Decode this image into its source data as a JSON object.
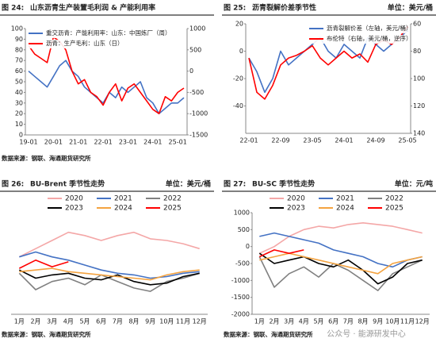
{
  "chart_data": [
    {
      "type": "line",
      "figure_label": "图 24:",
      "title": "山东沥青生产装置毛利润 & 产能利用率",
      "source": "数据来源：钢联、海通期货研究所",
      "legend": "upper left",
      "categories": [
        "19-01",
        null,
        null,
        null,
        "20-01",
        null,
        null,
        null,
        "21-01",
        null,
        null,
        null,
        "22-01",
        null,
        null,
        null,
        "23-01",
        null,
        null,
        null,
        "24-01",
        null,
        null,
        null,
        "25-01",
        null
      ],
      "ylim": [
        0,
        100
      ],
      "yticks": [
        0,
        10,
        20,
        30,
        40,
        50,
        60,
        70,
        80,
        90,
        100
      ],
      "y2lim": [
        -1500,
        1000
      ],
      "y2ticks": [
        -1500,
        -1000,
        -500,
        0,
        500,
        1000
      ],
      "series": [
        {
          "name": "重交沥青：产能利用率：山东：中国炼厂（周）",
          "color": "#4472c4",
          "values": [
            60,
            55,
            50,
            45,
            55,
            65,
            70,
            60,
            55,
            45,
            40,
            35,
            30,
            40,
            35,
            45,
            40,
            45,
            50,
            35,
            30,
            20,
            25,
            30,
            30,
            35
          ]
        },
        {
          "name": "沥青：生产毛利：山东（日）",
          "color": "#ff0000",
          "axis": "y2",
          "values": [
            600,
            400,
            300,
            200,
            800,
            700,
            500,
            0,
            -300,
            -200,
            -500,
            -600,
            -800,
            -500,
            -300,
            -700,
            -400,
            -300,
            -500,
            -700,
            -900,
            -1000,
            -600,
            -700,
            -500,
            -400
          ]
        }
      ]
    },
    {
      "type": "line",
      "figure_label": "图 25:",
      "title": "沥青裂解价差季节性",
      "unit": "单位：美元/桶",
      "legend": "upper right",
      "categories": [
        "22-01",
        null,
        null,
        null,
        "22-09",
        null,
        null,
        null,
        "23-05",
        null,
        null,
        null,
        "24-01",
        null,
        null,
        null,
        "24-09",
        null,
        null,
        null,
        "25-05"
      ],
      "ylim": [
        -60,
        20
      ],
      "yticks": [
        -40,
        -20,
        0,
        20
      ],
      "y2lim": [
        140,
        60
      ],
      "y2ticks": [
        60,
        80,
        100,
        120,
        140
      ],
      "series": [
        {
          "name": "沥青裂解价差（左轴，美元/桶）",
          "color": "#4472c4",
          "values": [
            -5,
            -15,
            -30,
            -20,
            0,
            -10,
            -5,
            0,
            5,
            10,
            0,
            -5,
            5,
            0,
            -5,
            10,
            5,
            0,
            5,
            10,
            15
          ]
        },
        {
          "name": "布伦特（右轴，美元/桶，逆序）",
          "color": "#ff0000",
          "axis": "y2",
          "values": [
            85,
            110,
            115,
            105,
            90,
            85,
            83,
            80,
            76,
            85,
            90,
            85,
            80,
            85,
            82,
            88,
            75,
            72,
            75,
            70,
            62
          ]
        }
      ]
    },
    {
      "type": "season",
      "figure_label": "图 26:",
      "title": "BU-Brent 季节性走势",
      "unit": "单位：美元/桶",
      "source": "数据来源：钢联、海通期货研究所",
      "legend": "top",
      "categories": [
        "1月",
        "2月",
        "3月",
        "4月",
        "5月",
        "6月",
        "7月",
        "8月",
        "9月",
        "10月",
        "11月",
        "12月"
      ],
      "ylim": [
        -30,
        30
      ],
      "series": [
        {
          "name": "2020",
          "color": "#f4a7a7",
          "values": [
            5,
            10,
            15,
            20,
            18,
            15,
            18,
            20,
            16,
            15,
            13,
            10
          ]
        },
        {
          "name": "2021",
          "color": "#4472c4",
          "values": [
            5,
            8,
            5,
            3,
            0,
            -3,
            -5,
            -6,
            -8,
            -7,
            -5,
            -4
          ]
        },
        {
          "name": "2022",
          "color": "#808080",
          "values": [
            -5,
            -15,
            -10,
            -8,
            -12,
            -6,
            -10,
            -14,
            -16,
            -10,
            -8,
            -5
          ]
        },
        {
          "name": "2023",
          "color": "#000000",
          "values": [
            -3,
            -8,
            -6,
            -5,
            -8,
            -9,
            -6,
            -10,
            -12,
            -11,
            -7,
            -5
          ]
        },
        {
          "name": "2024",
          "color": "#f4a340",
          "values": [
            -4,
            -3,
            -2,
            -4,
            -5,
            -6,
            -7,
            -8,
            -9,
            -6,
            -4,
            -3
          ]
        },
        {
          "name": "2025",
          "color": "#ff0000",
          "values": [
            -2,
            3,
            -1,
            2,
            null,
            null,
            null,
            null,
            null,
            null,
            null,
            null
          ]
        }
      ]
    },
    {
      "type": "season",
      "figure_label": "图 27:",
      "title": "BU-SC 季节性走势",
      "unit": "单位：元/吨",
      "source": "数据来源：钢联、海通期货研究所",
      "legend": "top",
      "categories": [
        "1月",
        "2月",
        "3月",
        "4月",
        "5月",
        "6月",
        "7月",
        "8月",
        "9月",
        "10月",
        "11月",
        "12月"
      ],
      "ylim": [
        -2000,
        1000
      ],
      "yticks": [
        -2000,
        -1500,
        -1000,
        -500,
        0,
        500,
        1000
      ],
      "series": [
        {
          "name": "2020",
          "color": "#f4a7a7",
          "values": [
            -200,
            0,
            300,
            500,
            600,
            550,
            650,
            700,
            650,
            600,
            500,
            400
          ]
        },
        {
          "name": "2021",
          "color": "#4472c4",
          "values": [
            300,
            400,
            300,
            200,
            100,
            -100,
            -200,
            -300,
            -500,
            -600,
            -400,
            -300
          ]
        },
        {
          "name": "2022",
          "color": "#808080",
          "values": [
            -300,
            -1200,
            -800,
            -600,
            -900,
            -500,
            -700,
            -1000,
            -1300,
            -800,
            -600,
            -400
          ]
        },
        {
          "name": "2023",
          "color": "#000000",
          "values": [
            -200,
            -500,
            -400,
            -300,
            -500,
            -600,
            -400,
            -700,
            -1100,
            -900,
            -500,
            -400
          ]
        },
        {
          "name": "2024",
          "color": "#f4a340",
          "values": [
            -400,
            -300,
            -200,
            -300,
            -400,
            -500,
            -600,
            -700,
            -800,
            -500,
            -400,
            -300
          ]
        },
        {
          "name": "2025",
          "color": "#ff0000",
          "values": [
            -300,
            -100,
            -200,
            -100,
            null,
            null,
            null,
            null,
            null,
            null,
            null,
            null
          ]
        }
      ]
    }
  ],
  "watermark": "公众号 · 能源研发中心"
}
